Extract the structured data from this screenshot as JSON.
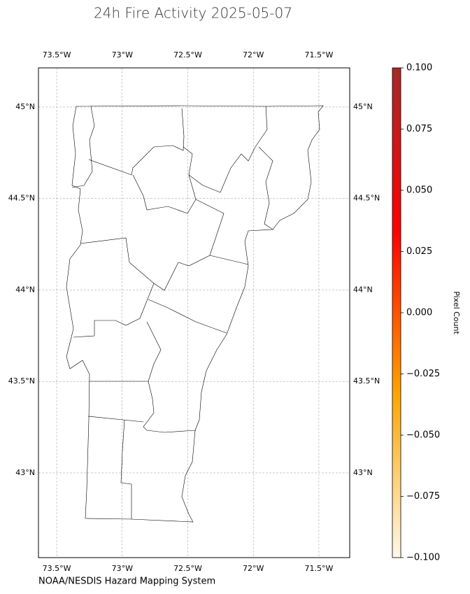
{
  "chart_data": {
    "type": "map",
    "title": "24h Fire Activity 2025-05-07",
    "source": "NOAA/NESDIS Hazard Mapping System",
    "xlim": [
      -73.639,
      -71.265
    ],
    "ylim": [
      42.537,
      45.214
    ],
    "xticks": [
      {
        "value": -73.5,
        "label": "73.5°W"
      },
      {
        "value": -73,
        "label": "73°W"
      },
      {
        "value": -72.5,
        "label": "72.5°W"
      },
      {
        "value": -72,
        "label": "72°W"
      },
      {
        "value": -71.5,
        "label": "71.5°W"
      }
    ],
    "yticks": [
      {
        "value": 45,
        "label": "45°N"
      },
      {
        "value": 44.5,
        "label": "44.5°N"
      },
      {
        "value": 44,
        "label": "44°N"
      },
      {
        "value": 43.5,
        "label": "43.5°N"
      },
      {
        "value": 43,
        "label": "43°N"
      }
    ],
    "grid": true,
    "colorbar": {
      "label": "Pixel Count",
      "colors": [
        "#fff8e8",
        "#ffa500",
        "#ff0000",
        "#a52a2a"
      ],
      "lim": [
        -0.1,
        0.1
      ],
      "ticks": [
        {
          "value": 0.1,
          "label": "0.100"
        },
        {
          "value": 0.075,
          "label": "0.075"
        },
        {
          "value": 0.05,
          "label": "0.050"
        },
        {
          "value": 0.025,
          "label": "0.025"
        },
        {
          "value": 0,
          "label": "0.000"
        },
        {
          "value": -0.025,
          "label": "−0.025"
        },
        {
          "value": -0.05,
          "label": "−0.050"
        },
        {
          "value": -0.075,
          "label": "−0.075"
        },
        {
          "value": -0.1,
          "label": "−0.100"
        }
      ]
    }
  }
}
